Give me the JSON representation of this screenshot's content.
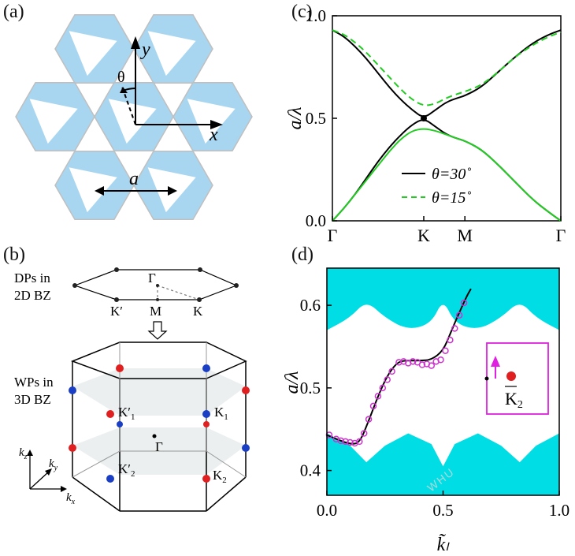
{
  "panel_labels": {
    "a": "(a)",
    "b": "(b)",
    "c": "(c)",
    "d": "(d)"
  },
  "panel_a": {
    "axis_x": "x",
    "axis_y": "y",
    "angle": "θ",
    "lattice": "a"
  },
  "panel_b": {
    "dp_label_1": "DPs in",
    "dp_label_2": "2D BZ",
    "wp_label_1": "WPs in",
    "wp_label_2": "3D BZ",
    "gamma": "Γ",
    "kprime": "K′",
    "m": "M",
    "k": "K",
    "k1prime": "K′",
    "k1prime_sub": "1",
    "k1": "K",
    "k1_sub": "1",
    "k2prime": "K′",
    "k2prime_sub": "2",
    "k2": "K",
    "k2_sub": "2",
    "kx": "k",
    "kx_sub": "x",
    "ky": "k",
    "ky_sub": "y",
    "kz": "k",
    "kz_sub": "z",
    "colors": {
      "red": "#e02020",
      "blue": "#1a3fc4",
      "plane": "#d9dfe0"
    }
  },
  "chart_data": [
    {
      "type": "line",
      "panel": "c",
      "ylabel": "a/λ",
      "ylim": [
        0.0,
        1.0
      ],
      "yticks": [
        "0.0",
        "0.5",
        "1.0"
      ],
      "xticks": [
        "Γ",
        "K",
        "M",
        "Γ"
      ],
      "xtick_pos": [
        0,
        0.4,
        0.58,
        1
      ],
      "legend": [
        {
          "label": "θ=30˚",
          "style": "solid",
          "color": "#000000"
        },
        {
          "label": "θ=15˚",
          "style": "dashed",
          "color": "#22cc22"
        }
      ],
      "series": [
        {
          "name": "θ=30˚",
          "band": "upper",
          "color": "#000000",
          "style": "solid",
          "x": [
            0,
            0.05,
            0.1,
            0.15,
            0.2,
            0.25,
            0.3,
            0.35,
            0.4,
            0.45,
            0.5,
            0.55,
            0.58,
            0.65,
            0.72,
            0.8,
            0.88,
            0.95,
            1.0
          ],
          "y": [
            0.93,
            0.9,
            0.85,
            0.79,
            0.72,
            0.65,
            0.59,
            0.54,
            0.5,
            0.54,
            0.58,
            0.6,
            0.61,
            0.65,
            0.72,
            0.8,
            0.87,
            0.91,
            0.93
          ]
        },
        {
          "name": "θ=30˚",
          "band": "lower",
          "color": "#000000",
          "style": "solid",
          "x": [
            0,
            0.05,
            0.1,
            0.15,
            0.2,
            0.25,
            0.3,
            0.35,
            0.4,
            0.45,
            0.5,
            0.55,
            0.58,
            0.65,
            0.72,
            0.8,
            0.88,
            0.95,
            1.0
          ],
          "y": [
            0.0,
            0.06,
            0.13,
            0.21,
            0.29,
            0.36,
            0.42,
            0.47,
            0.5,
            0.46,
            0.42,
            0.4,
            0.39,
            0.35,
            0.28,
            0.19,
            0.1,
            0.04,
            0.0
          ]
        },
        {
          "name": "θ=15˚",
          "band": "upper",
          "color": "#22cc22",
          "style": "dashed",
          "x": [
            0,
            0.05,
            0.1,
            0.15,
            0.2,
            0.25,
            0.3,
            0.35,
            0.4,
            0.45,
            0.5,
            0.55,
            0.58,
            0.65,
            0.72,
            0.8,
            0.88,
            0.95,
            1.0
          ],
          "y": [
            0.93,
            0.91,
            0.87,
            0.82,
            0.76,
            0.7,
            0.64,
            0.59,
            0.56,
            0.57,
            0.6,
            0.62,
            0.63,
            0.66,
            0.72,
            0.8,
            0.86,
            0.9,
            0.92
          ]
        },
        {
          "name": "θ=15˚",
          "band": "lower",
          "color": "#22cc22",
          "style": "solid",
          "x": [
            0,
            0.05,
            0.1,
            0.15,
            0.2,
            0.25,
            0.3,
            0.35,
            0.4,
            0.45,
            0.5,
            0.55,
            0.58,
            0.65,
            0.72,
            0.8,
            0.88,
            0.95,
            1.0
          ],
          "y": [
            0.0,
            0.06,
            0.13,
            0.2,
            0.27,
            0.34,
            0.4,
            0.44,
            0.45,
            0.44,
            0.42,
            0.4,
            0.39,
            0.35,
            0.28,
            0.19,
            0.1,
            0.04,
            0.0
          ]
        }
      ],
      "dirac_point": {
        "x": 0.4,
        "y": 0.5
      }
    },
    {
      "type": "scatter",
      "panel": "d",
      "ylabel": "a/λ",
      "xlabel": "k̃ₗ",
      "xlim": [
        0.0,
        1.0
      ],
      "ylim": [
        0.37,
        0.645
      ],
      "xticks": [
        "0.0",
        "0.5",
        "1.0"
      ],
      "yticks": [
        "0.4",
        "0.5",
        "0.6"
      ],
      "ytick_values": [
        0.4,
        0.5,
        0.6
      ],
      "fill_color": "#00dde4",
      "line": {
        "color": "#000000",
        "x": [
          0.0,
          0.05,
          0.1,
          0.14,
          0.18,
          0.22,
          0.26,
          0.3,
          0.33,
          0.36,
          0.4,
          0.45,
          0.5,
          0.53,
          0.56,
          0.6,
          0.62
        ],
        "y": [
          0.443,
          0.437,
          0.432,
          0.433,
          0.46,
          0.49,
          0.515,
          0.53,
          0.533,
          0.533,
          0.533,
          0.534,
          0.545,
          0.565,
          0.585,
          0.61,
          0.62
        ]
      },
      "points": {
        "color": "#cc33cc",
        "x": [
          0.01,
          0.04,
          0.06,
          0.08,
          0.1,
          0.12,
          0.14,
          0.16,
          0.18,
          0.2,
          0.22,
          0.24,
          0.26,
          0.28,
          0.31,
          0.33,
          0.35,
          0.37,
          0.39,
          0.41,
          0.43,
          0.45,
          0.47,
          0.49,
          0.51,
          0.53,
          0.55,
          0.57,
          0.59
        ],
        "y": [
          0.443,
          0.438,
          0.436,
          0.435,
          0.434,
          0.433,
          0.435,
          0.445,
          0.462,
          0.478,
          0.49,
          0.5,
          0.51,
          0.52,
          0.531,
          0.532,
          0.53,
          0.532,
          0.531,
          0.528,
          0.529,
          0.527,
          0.532,
          0.534,
          0.545,
          0.558,
          0.572,
          0.588,
          0.603
        ]
      },
      "top_band": {
        "x": [
          0,
          0.1,
          0.17,
          0.25,
          0.35,
          0.45,
          0.5,
          0.55,
          0.65,
          0.75,
          0.83,
          0.9,
          1.0
        ],
        "y": [
          0.57,
          0.585,
          0.606,
          0.585,
          0.57,
          0.578,
          0.608,
          0.578,
          0.57,
          0.585,
          0.606,
          0.585,
          0.57
        ]
      },
      "bottom_band": {
        "x": [
          0,
          0.1,
          0.17,
          0.25,
          0.35,
          0.45,
          0.5,
          0.55,
          0.65,
          0.75,
          0.83,
          0.9,
          1.0
        ],
        "y": [
          0.445,
          0.43,
          0.41,
          0.43,
          0.445,
          0.432,
          0.405,
          0.432,
          0.445,
          0.43,
          0.41,
          0.43,
          0.445
        ]
      },
      "inset": {
        "label": "K",
        "bar_label": "2",
        "color": "#e020e0"
      }
    }
  ]
}
